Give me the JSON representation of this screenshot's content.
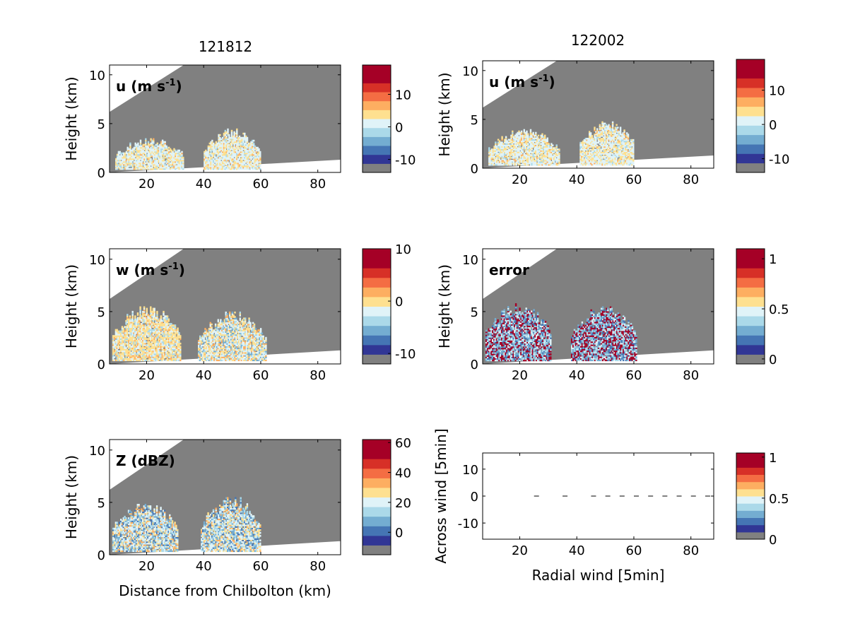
{
  "figure": {
    "titles": [
      "121812",
      "122002"
    ]
  },
  "chart_data": [
    {
      "type": "heatmap",
      "title": "121812",
      "panel_label": "u (m s-1)",
      "label_text": "u (m s",
      "label_sup": "-1",
      "label_close": ")",
      "xlabel": "",
      "ylabel": "Height (km)",
      "xlim": [
        7,
        88
      ],
      "ylim": [
        0,
        11
      ],
      "xticks": [
        20,
        40,
        60,
        80
      ],
      "yticks": [
        0,
        5,
        10
      ],
      "colorbar": {
        "ticks": [
          -10,
          0,
          10
        ],
        "range": [
          -14,
          19
        ],
        "levels": 12
      },
      "echo_regions": [
        {
          "x0": 9,
          "x1": 33,
          "base": 0.3,
          "top": 3.5,
          "value_class": "light"
        },
        {
          "x0": 40,
          "x1": 60,
          "base": 0.3,
          "top": 4.5,
          "value_class": "light"
        }
      ]
    },
    {
      "type": "heatmap",
      "title": "122002",
      "panel_label": "u (m s-1)",
      "label_text": "u (m s",
      "label_sup": "-1",
      "label_close": ")",
      "xlabel": "",
      "ylabel": "Height (km)",
      "xlim": [
        7,
        88
      ],
      "ylim": [
        0,
        11
      ],
      "xticks": [
        20,
        40,
        60,
        80
      ],
      "yticks": [
        0,
        5,
        10
      ],
      "colorbar": {
        "ticks": [
          -10,
          0,
          10
        ],
        "range": [
          -14,
          19
        ],
        "levels": 12
      },
      "echo_regions": [
        {
          "x0": 9,
          "x1": 34,
          "base": 0.3,
          "top": 4.0,
          "value_class": "light"
        },
        {
          "x0": 41,
          "x1": 60,
          "base": 0.3,
          "top": 4.8,
          "value_class": "light"
        }
      ]
    },
    {
      "type": "heatmap",
      "panel_label": "w (m s-1)",
      "label_text": "w (m s",
      "label_sup": "-1",
      "label_close": ")",
      "xlabel": "",
      "ylabel": "Height (km)",
      "xlim": [
        7,
        88
      ],
      "ylim": [
        0,
        11
      ],
      "xticks": [
        20,
        40,
        60,
        80
      ],
      "yticks": [
        0,
        5,
        10
      ],
      "colorbar": {
        "ticks": [
          -10,
          0,
          10
        ],
        "range": [
          -12,
          10
        ],
        "levels": 12
      },
      "echo_regions": [
        {
          "x0": 8,
          "x1": 32,
          "base": 0.3,
          "top": 5.5,
          "value_class": "warm"
        },
        {
          "x0": 38,
          "x1": 62,
          "base": 0.3,
          "top": 5.0,
          "value_class": "mixed"
        }
      ]
    },
    {
      "type": "heatmap",
      "panel_label": "error",
      "label_text": "error",
      "label_sup": "",
      "label_close": "",
      "xlabel": "",
      "ylabel": "Height (km)",
      "xlim": [
        7,
        88
      ],
      "ylim": [
        0,
        11
      ],
      "xticks": [
        20,
        40,
        60,
        80
      ],
      "yticks": [
        0,
        5,
        10
      ],
      "colorbar": {
        "ticks": [
          0,
          0.5,
          1
        ],
        "range": [
          -0.05,
          1.1
        ],
        "levels": 12
      },
      "echo_regions": [
        {
          "x0": 8,
          "x1": 31,
          "base": 0.3,
          "top": 5.8,
          "value_class": "error"
        },
        {
          "x0": 38,
          "x1": 61,
          "base": 0.3,
          "top": 5.5,
          "value_class": "error"
        }
      ]
    },
    {
      "type": "heatmap",
      "panel_label": "Z (dBZ)",
      "label_text": "Z (dBZ)",
      "label_sup": "",
      "label_close": "",
      "xlabel": "Distance from Chilbolton (km)",
      "ylabel": "Height (km)",
      "xlim": [
        7,
        88
      ],
      "ylim": [
        0,
        11
      ],
      "xticks": [
        20,
        40,
        60,
        80
      ],
      "yticks": [
        0,
        5,
        10
      ],
      "colorbar": {
        "ticks": [
          0,
          20,
          40,
          60
        ],
        "range": [
          -15,
          62
        ],
        "levels": 12
      },
      "echo_regions": [
        {
          "x0": 8,
          "x1": 31,
          "base": 0.3,
          "top": 5.0,
          "value_class": "reflectivity"
        },
        {
          "x0": 39,
          "x1": 60,
          "base": 0.3,
          "top": 5.5,
          "value_class": "reflectivity"
        }
      ]
    },
    {
      "type": "scatter",
      "panel_label": "",
      "xlabel": "Radial wind [5min]",
      "ylabel": "Across wind [5min]",
      "xlim": [
        7,
        88
      ],
      "ylim": [
        -16,
        16
      ],
      "xticks": [
        20,
        40,
        60,
        80
      ],
      "yticks": [
        -10,
        0,
        10
      ],
      "colorbar": {
        "ticks": [
          0,
          0.5,
          1
        ],
        "range": [
          0,
          1.05
        ],
        "levels": 12
      },
      "x": [
        26,
        36,
        46,
        51,
        56,
        61,
        66,
        71,
        76,
        81,
        86
      ],
      "y": [
        0,
        0,
        0,
        0,
        0,
        0,
        0,
        0,
        0,
        0,
        0
      ]
    }
  ],
  "colors": {
    "colormap": [
      "#808080",
      "#313695",
      "#4575b4",
      "#74add1",
      "#abd9e9",
      "#e0f3f8",
      "#fee090",
      "#fdae61",
      "#f46d43",
      "#d73027",
      "#a50026",
      "#a50026"
    ],
    "masked": "#808080",
    "background": "#ffffff"
  }
}
